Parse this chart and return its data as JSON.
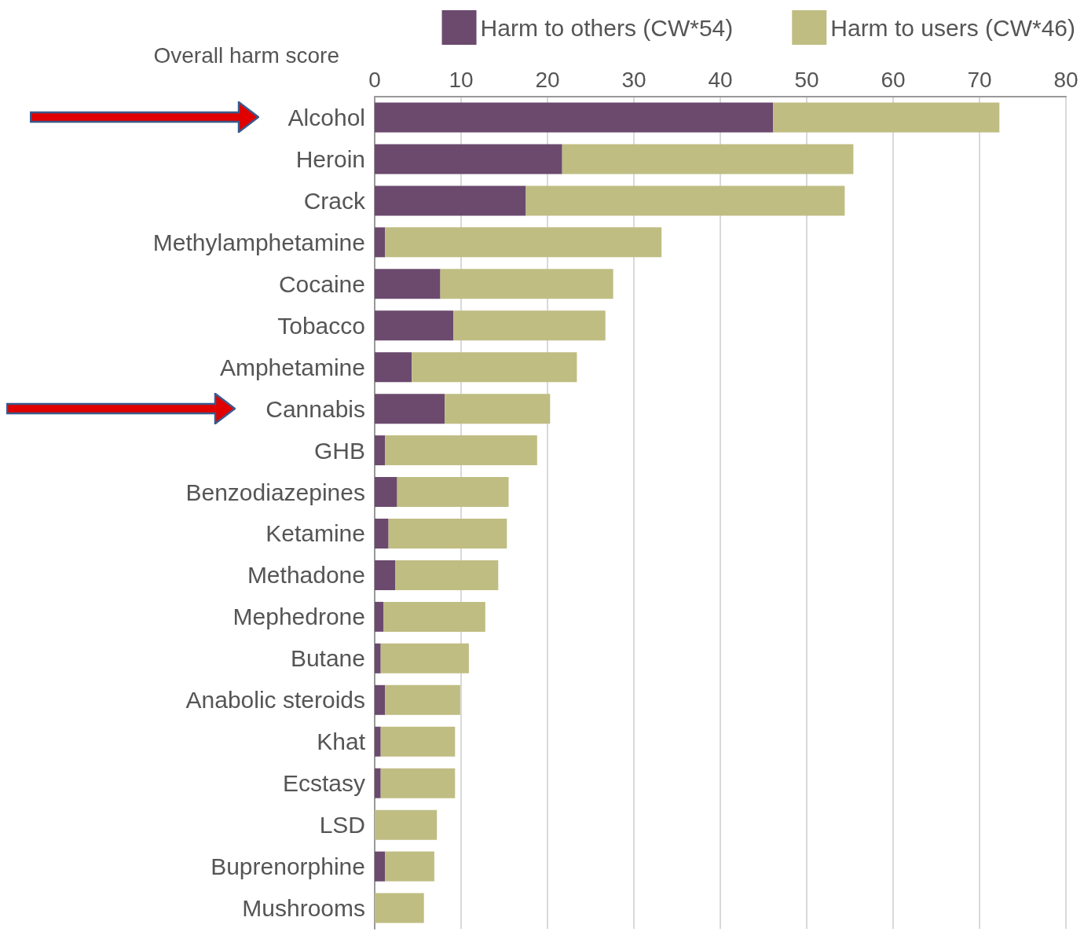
{
  "chart_data": {
    "type": "bar",
    "orientation": "horizontal",
    "stacked": true,
    "xlabel": "Overall harm score",
    "categories": [
      "Alcohol",
      "Heroin",
      "Crack",
      "Methylamphetamine",
      "Cocaine",
      "Tobacco",
      "Amphetamine",
      "Cannabis",
      "GHB",
      "Benzodiazepines",
      "Ketamine",
      "Methadone",
      "Mephedrone",
      "Butane",
      "Anabolic steroids",
      "Khat",
      "Ecstasy",
      "LSD",
      "Buprenorphine",
      "Mushrooms"
    ],
    "series": [
      {
        "name": "Harm to others (CW*54)",
        "color": "#6b4a6e",
        "values": [
          46.1,
          21.7,
          17.5,
          1.2,
          7.6,
          9.1,
          4.3,
          8.1,
          1.2,
          2.6,
          1.6,
          2.4,
          1.0,
          0.7,
          1.2,
          0.7,
          0.7,
          0,
          1.2,
          0
        ]
      },
      {
        "name": "Harm to users (CW*46)",
        "color": "#bfbd82",
        "values": [
          26.2,
          33.7,
          36.9,
          32.0,
          20.0,
          17.6,
          19.1,
          12.2,
          17.6,
          12.9,
          13.7,
          11.9,
          11.8,
          10.2,
          8.7,
          8.6,
          8.6,
          7.2,
          5.7,
          5.7
        ]
      }
    ],
    "xlim": [
      0,
      80
    ],
    "xticks": [
      0,
      10,
      20,
      30,
      40,
      50,
      60,
      70,
      80
    ],
    "grid": "x",
    "legend": "top right"
  }
}
